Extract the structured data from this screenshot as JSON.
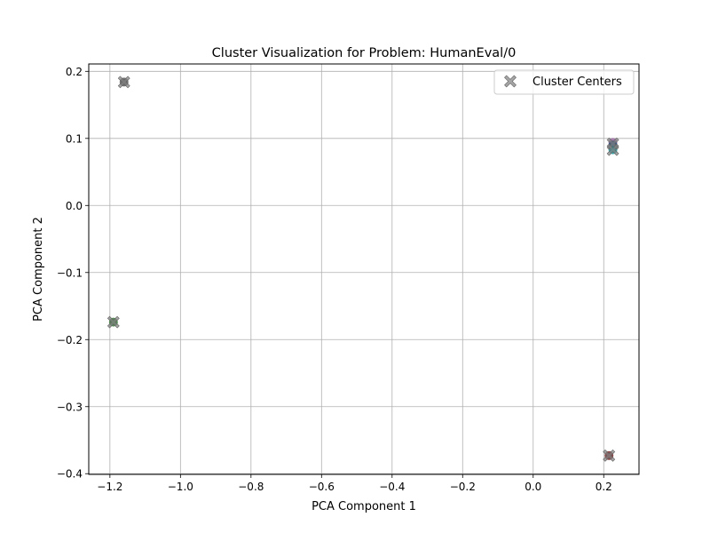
{
  "chart_data": {
    "type": "scatter",
    "title": "Cluster Visualization for Problem: HumanEval/0",
    "xlabel": "PCA Component 1",
    "ylabel": "PCA Component 2",
    "xlim": [
      -1.26,
      0.3
    ],
    "ylim": [
      -0.401,
      0.211
    ],
    "xticks": [
      -1.2,
      -1.0,
      -0.8,
      -0.6,
      -0.4,
      -0.2,
      0.0,
      0.2
    ],
    "xtick_labels": [
      "−1.2",
      "−1.0",
      "−0.8",
      "−0.6",
      "−0.4",
      "−0.2",
      "0.0",
      "0.2"
    ],
    "yticks": [
      -0.4,
      -0.3,
      -0.2,
      -0.1,
      0.0,
      0.1,
      0.2
    ],
    "ytick_labels": [
      "−0.4",
      "−0.3",
      "−0.2",
      "−0.1",
      "0.0",
      "0.1",
      "0.2"
    ],
    "grid": true,
    "legend_position": "top-right",
    "legend": {
      "label": "Cluster Centers",
      "marker_color": "#808080"
    },
    "points": [
      {
        "x": -1.16,
        "y": 0.184,
        "color": "#5a5a5a"
      },
      {
        "x": -1.19,
        "y": -0.174,
        "color": "#3a7a3a"
      },
      {
        "x": 0.226,
        "y": 0.094,
        "color": "#9a6aa0"
      },
      {
        "x": 0.226,
        "y": 0.09,
        "color": "#1f4e7a"
      },
      {
        "x": 0.226,
        "y": 0.083,
        "color": "#1a9aa0"
      },
      {
        "x": 0.215,
        "y": -0.373,
        "color": "#7a2a2a"
      }
    ],
    "centers": [
      {
        "x": -1.16,
        "y": 0.184
      },
      {
        "x": -1.19,
        "y": -0.174
      },
      {
        "x": 0.226,
        "y": 0.092
      },
      {
        "x": 0.226,
        "y": 0.083
      },
      {
        "x": 0.215,
        "y": -0.373
      }
    ]
  }
}
